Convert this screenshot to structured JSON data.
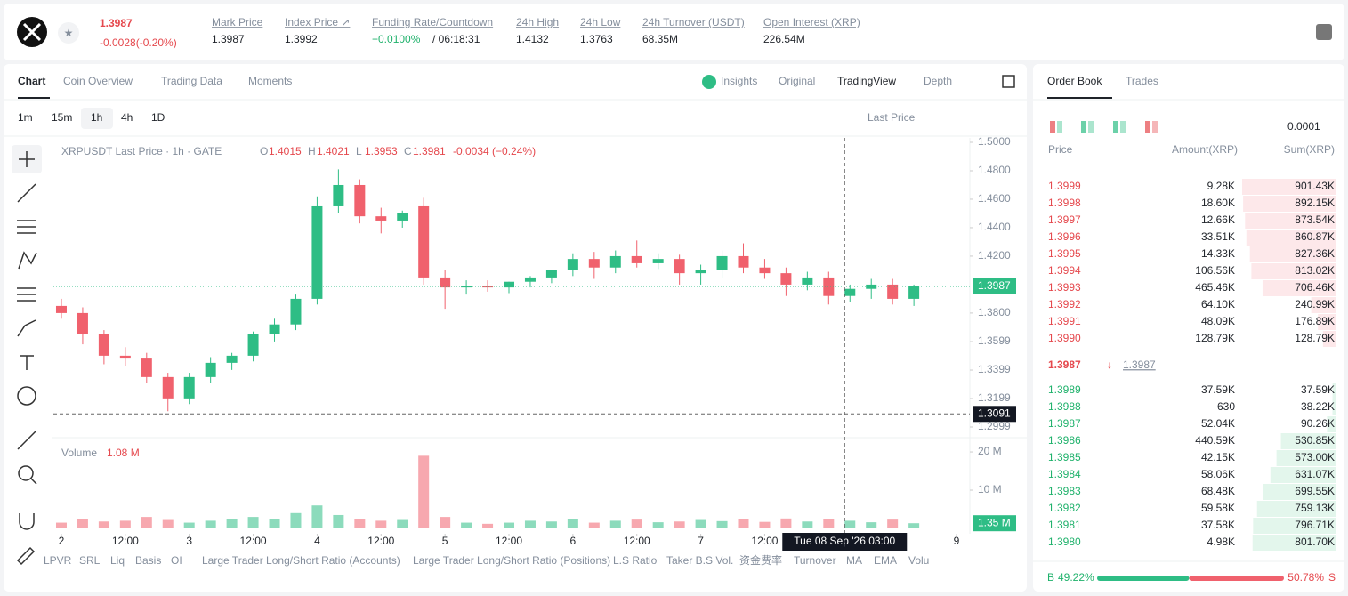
{
  "header": {
    "price": "1.3987",
    "change": "-0.0028(-0.20%)",
    "stats": [
      {
        "label": "Mark Price",
        "value": "1.3987"
      },
      {
        "label": "Index Price ↗",
        "value": "1.3992"
      },
      {
        "label": "Funding Rate/Countdown",
        "value": "+0.0100%",
        "extra": "/ 06:18:31"
      },
      {
        "label": "24h High",
        "value": "1.4132"
      },
      {
        "label": "24h Low",
        "value": "1.3763"
      },
      {
        "label": "24h Turnover (USDT)",
        "value": "68.35M"
      },
      {
        "label": "Open Interest (XRP)",
        "value": "226.54M"
      }
    ]
  },
  "tabs": [
    "Chart",
    "Coin Overview",
    "Trading Data",
    "Moments"
  ],
  "view_tabs": [
    "Insights",
    "Original",
    "TradingView",
    "Depth"
  ],
  "intervals": [
    "1m",
    "15m",
    "1h",
    "4h",
    "1D"
  ],
  "price_type": "Last Price",
  "chart_data": {
    "type": "candlestick",
    "title": "XRPUSDT Last Price · 1h · GATE",
    "legend_values": [
      {
        "key": "O",
        "value": "1.4015"
      },
      {
        "key": "H",
        "value": "1.4021"
      },
      {
        "key": "L",
        "value": "1.3953"
      },
      {
        "key": "C",
        "value": "1.3981"
      }
    ],
    "legend_change": "-0.0034 (−0.24%)",
    "up_color": "#2ebd85",
    "down_color": "#f0616d",
    "x": [
      0,
      4,
      8,
      12,
      16,
      20,
      24,
      28,
      32,
      36,
      40,
      44,
      48,
      52,
      56,
      60,
      64,
      68,
      72,
      76,
      80,
      84,
      88,
      92,
      96,
      100,
      104,
      108,
      112,
      116,
      120,
      124,
      128,
      132,
      136,
      140,
      144,
      148,
      152,
      156,
      160
    ],
    "open": [
      1.385,
      1.38,
      1.365,
      1.35,
      1.348,
      1.335,
      1.32,
      1.335,
      1.345,
      1.35,
      1.365,
      1.372,
      1.39,
      1.455,
      1.47,
      1.448,
      1.445,
      1.455,
      1.405,
      1.398,
      1.399,
      1.398,
      1.402,
      1.405,
      1.41,
      1.418,
      1.412,
      1.42,
      1.415,
      1.418,
      1.408,
      1.41,
      1.42,
      1.412,
      1.408,
      1.4,
      1.405,
      1.392,
      1.397,
      1.4,
      1.39
    ],
    "high": [
      1.39,
      1.384,
      1.368,
      1.356,
      1.352,
      1.338,
      1.338,
      1.349,
      1.352,
      1.367,
      1.376,
      1.393,
      1.462,
      1.481,
      1.474,
      1.454,
      1.452,
      1.461,
      1.41,
      1.403,
      1.403,
      1.402,
      1.406,
      1.41,
      1.422,
      1.423,
      1.424,
      1.431,
      1.422,
      1.421,
      1.414,
      1.424,
      1.429,
      1.418,
      1.412,
      1.409,
      1.409,
      1.4,
      1.404,
      1.404,
      1.4
    ],
    "low": [
      1.376,
      1.358,
      1.344,
      1.343,
      1.331,
      1.311,
      1.316,
      1.331,
      1.34,
      1.346,
      1.36,
      1.368,
      1.386,
      1.45,
      1.443,
      1.436,
      1.44,
      1.4,
      1.383,
      1.393,
      1.395,
      1.394,
      1.398,
      1.401,
      1.406,
      1.404,
      1.408,
      1.412,
      1.411,
      1.4,
      1.4,
      1.405,
      1.408,
      1.404,
      1.392,
      1.396,
      1.386,
      1.388,
      1.39,
      1.386,
      1.385
    ],
    "close": [
      1.38,
      1.365,
      1.35,
      1.348,
      1.335,
      1.32,
      1.335,
      1.345,
      1.35,
      1.365,
      1.372,
      1.39,
      1.455,
      1.47,
      1.448,
      1.445,
      1.45,
      1.405,
      1.398,
      1.399,
      1.398,
      1.402,
      1.405,
      1.41,
      1.418,
      1.412,
      1.42,
      1.415,
      1.418,
      1.408,
      1.41,
      1.42,
      1.412,
      1.408,
      1.4,
      1.405,
      1.392,
      1.397,
      1.4,
      1.39,
      1.3987
    ],
    "xlim": [
      -1.5,
      170.5
    ],
    "xticks": [
      {
        "value": 0,
        "label": "2"
      },
      {
        "value": 12,
        "label": "12:00"
      },
      {
        "value": 24,
        "label": "3"
      },
      {
        "value": 36,
        "label": "12:00"
      },
      {
        "value": 48,
        "label": "4"
      },
      {
        "value": 60,
        "label": "12:00"
      },
      {
        "value": 72,
        "label": "5"
      },
      {
        "value": 84,
        "label": "12:00"
      },
      {
        "value": 96,
        "label": "6"
      },
      {
        "value": 108,
        "label": "12:00"
      },
      {
        "value": 120,
        "label": "7"
      },
      {
        "value": 132,
        "label": "12:00"
      },
      {
        "value": 168,
        "label": "9"
      }
    ],
    "ylim": [
      1.2999,
      1.5
    ],
    "yticks": [
      {
        "value": 1.5,
        "label": "1.5000"
      },
      {
        "value": 1.48,
        "label": "1.4800"
      },
      {
        "value": 1.46,
        "label": "1.4600"
      },
      {
        "value": 1.44,
        "label": "1.4400"
      },
      {
        "value": 1.42,
        "label": "1.4200"
      },
      {
        "value": 1.38,
        "label": "1.3800"
      },
      1.3599,
      1.3399,
      1.3199,
      1.2999
    ],
    "last_price": 1.3987,
    "crosshair": {
      "x": 147,
      "x_label": "Tue 08 Sep '26 03:00",
      "y": 1.3091
    },
    "volume_title": "Volume",
    "volume_value": "1.08 M",
    "volume": [
      1.5,
      2.5,
      1.8,
      2,
      3,
      2.2,
      1.5,
      2,
      2.5,
      3,
      2.4,
      4,
      6,
      3.5,
      2.5,
      2,
      2.2,
      19,
      3,
      1.5,
      1.2,
      1.5,
      2,
      1.8,
      2.5,
      1.5,
      2,
      2.3,
      1.6,
      1.8,
      2.2,
      1.9,
      2.4,
      1.7,
      2.6,
      1.8,
      2.5,
      2,
      1.6,
      2.3,
      1.35
    ],
    "volume_last_label": "1.35 M",
    "vlim": [
      0,
      23.5
    ],
    "vticks": [
      {
        "value": 20,
        "label": "20 M"
      },
      {
        "value": 10,
        "label": "10 M"
      }
    ]
  },
  "indicators": [
    "LPVR",
    "SRL",
    "Liq",
    "Basis",
    "OI",
    "Large Trader Long/Short Ratio (Accounts)",
    "Large Trader Long/Short Ratio (Positions)",
    "L.S Ratio",
    "Taker B.S Vol.",
    "资金费率",
    "Turnover",
    "MA",
    "EMA",
    "Volu"
  ],
  "order_book": {
    "tabs": [
      "Order Book",
      "Trades"
    ],
    "precision": "0.0001",
    "headers": [
      "Price",
      "Amount(XRP)",
      "Sum(XRP)"
    ],
    "asks": [
      [
        "1.3999",
        "9.28K",
        "901.43K"
      ],
      [
        "1.3998",
        "18.60K",
        "892.15K"
      ],
      [
        "1.3997",
        "12.66K",
        "873.54K"
      ],
      [
        "1.3996",
        "33.51K",
        "860.87K"
      ],
      [
        "1.3995",
        "14.33K",
        "827.36K"
      ],
      [
        "1.3994",
        "106.56K",
        "813.02K"
      ],
      [
        "1.3993",
        "465.46K",
        "706.46K"
      ],
      [
        "1.3992",
        "64.10K",
        "240.99K"
      ],
      [
        "1.3991",
        "48.09K",
        "176.89K"
      ],
      [
        "1.3990",
        "128.79K",
        "128.79K"
      ]
    ],
    "mid_price": "1.3987",
    "mark_price": "1.3987",
    "bids": [
      [
        "1.3989",
        "37.59K",
        "37.59K"
      ],
      [
        "1.3988",
        "630",
        "38.22K"
      ],
      [
        "1.3987",
        "52.04K",
        "90.26K"
      ],
      [
        "1.3986",
        "440.59K",
        "530.85K"
      ],
      [
        "1.3985",
        "42.15K",
        "573.00K"
      ],
      [
        "1.3984",
        "58.06K",
        "631.07K"
      ],
      [
        "1.3983",
        "68.48K",
        "699.55K"
      ],
      [
        "1.3982",
        "59.58K",
        "759.13K"
      ],
      [
        "1.3981",
        "37.58K",
        "796.71K"
      ],
      [
        "1.3980",
        "4.98K",
        "801.70K"
      ]
    ],
    "buy_key": "B",
    "buy_pct": "49.22%",
    "sell_pct": "50.78%",
    "sell_key": "S"
  }
}
